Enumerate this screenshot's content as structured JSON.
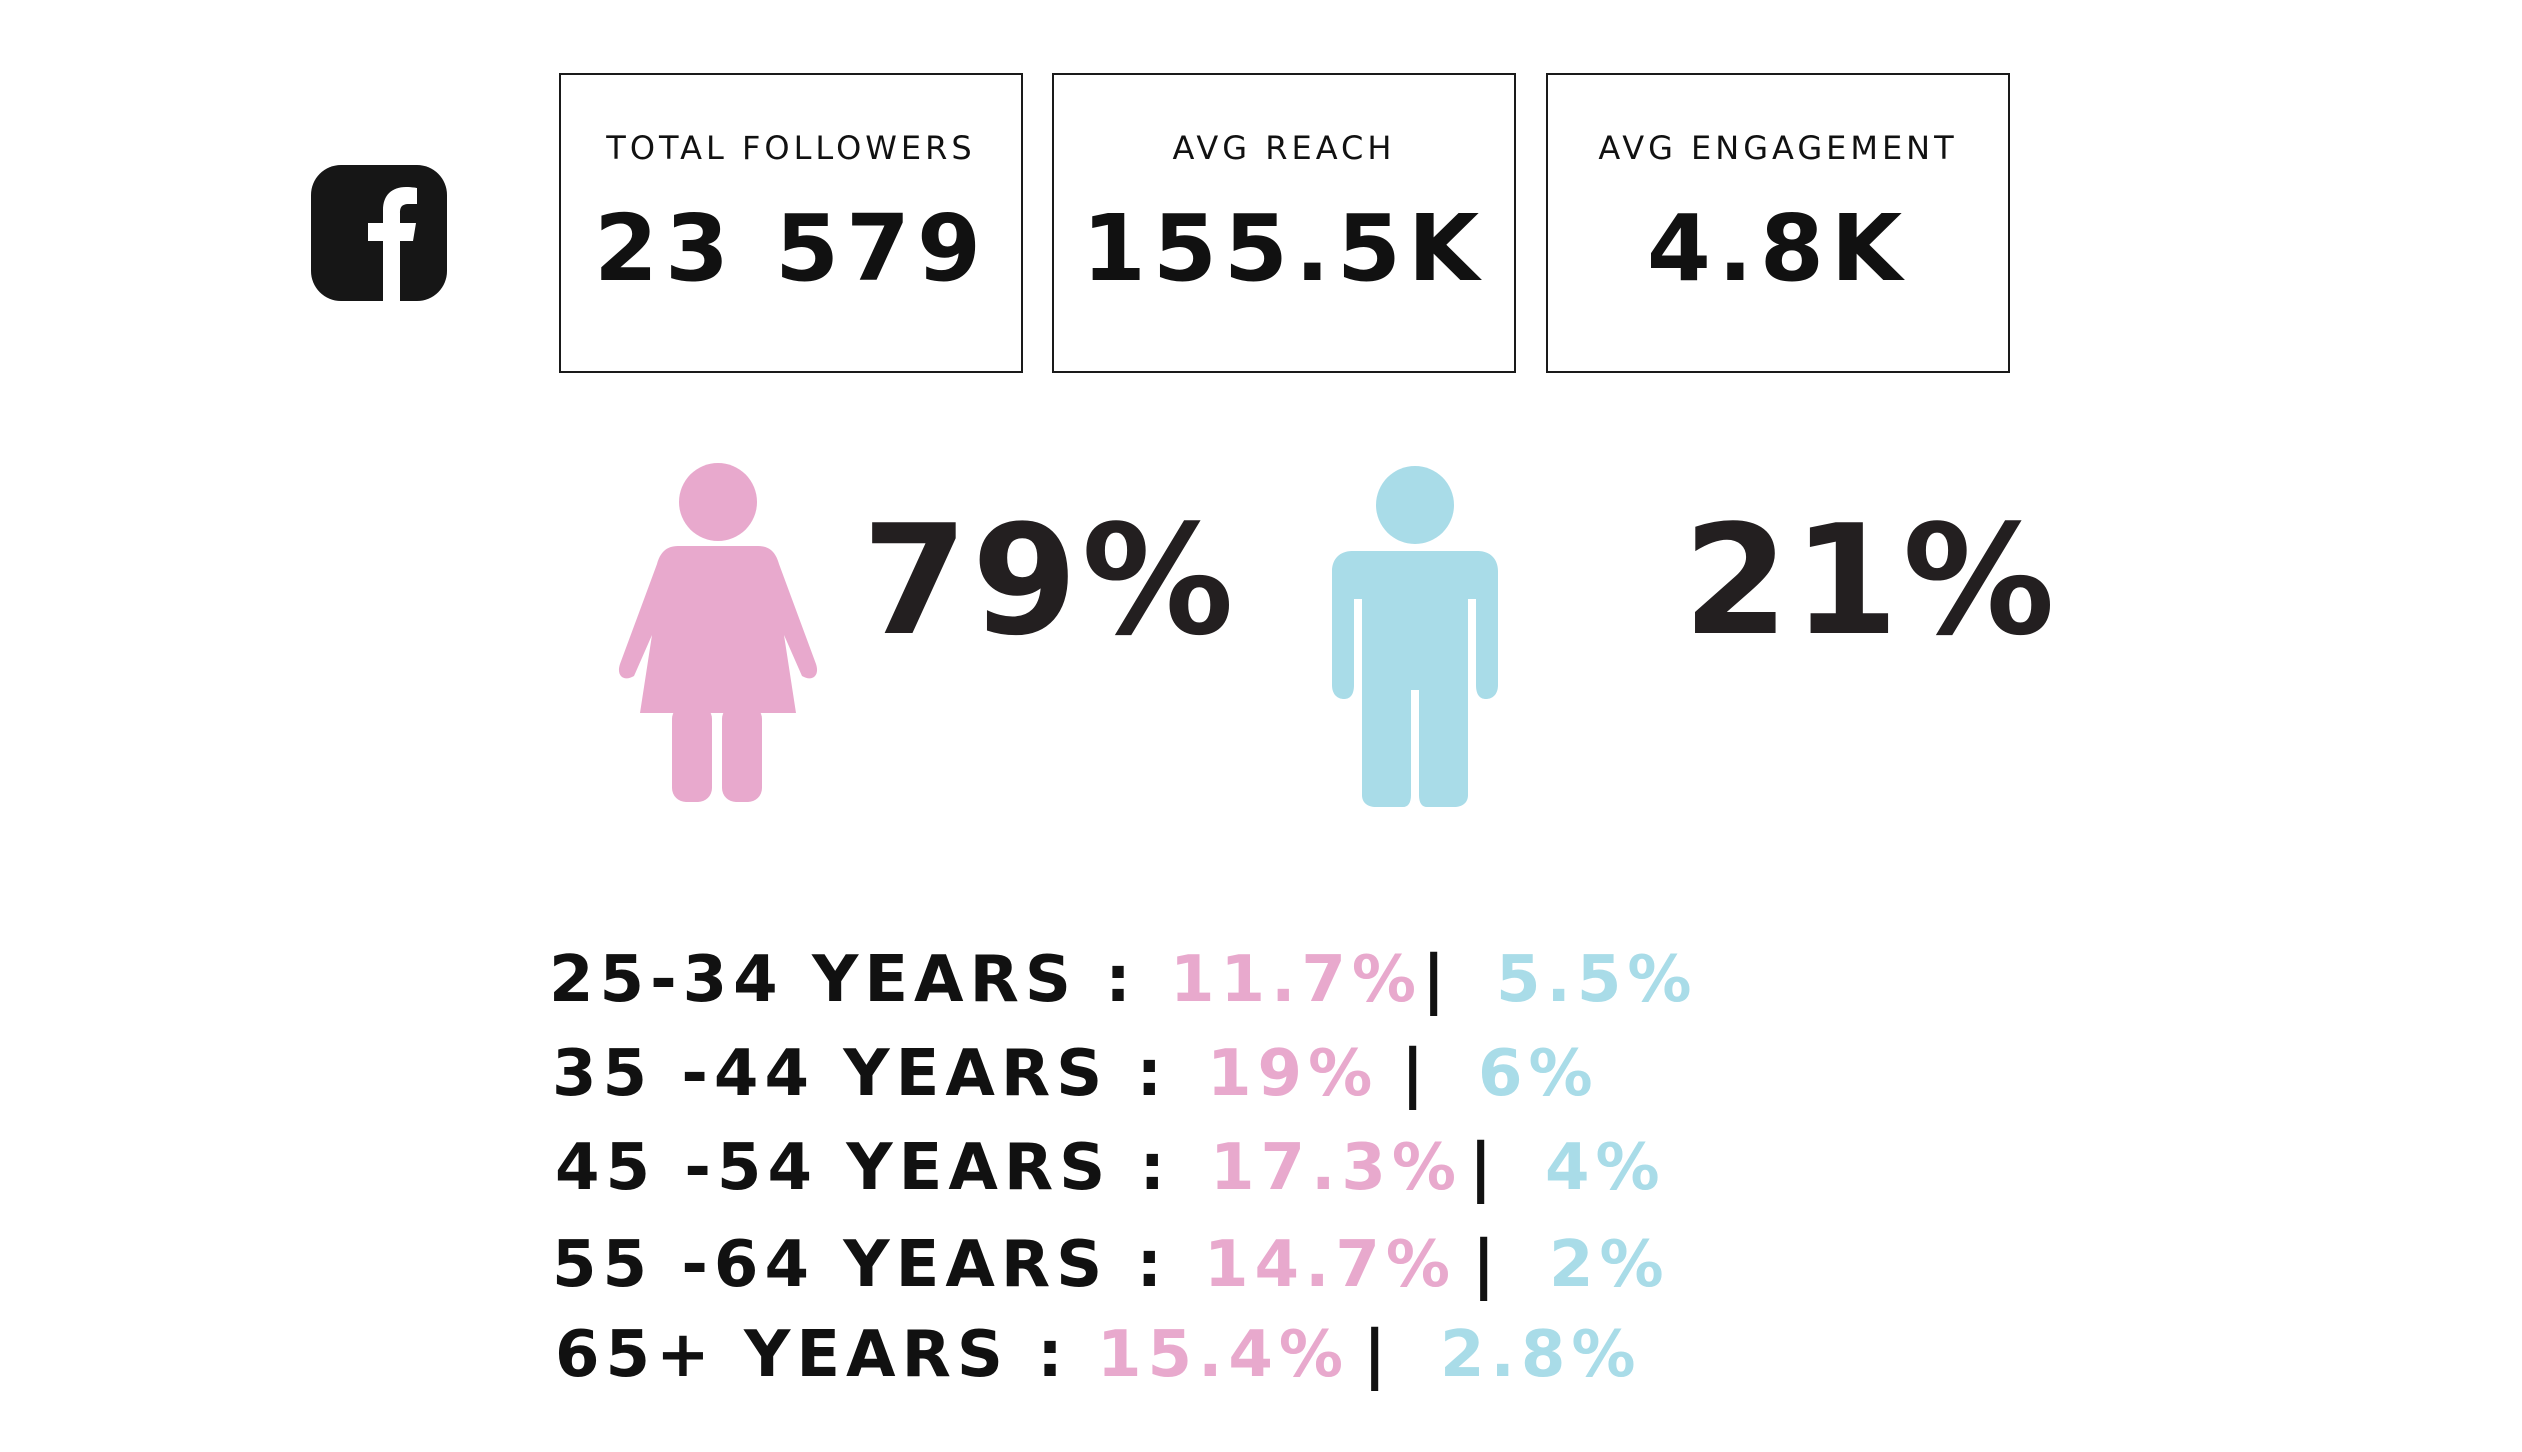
{
  "platform": {
    "icon": "facebook-icon"
  },
  "stats": [
    {
      "label": "TOTAL FOLLOWERS",
      "value": "23 579"
    },
    {
      "label": "AVG REACH",
      "value": "155.5K"
    },
    {
      "label": "AVG ENGAGEMENT",
      "value": "4.8K"
    }
  ],
  "gender": {
    "female": {
      "icon": "female-figure-icon",
      "percent": "79%",
      "color": "#e8a9cd"
    },
    "male": {
      "icon": "male-figure-icon",
      "percent": "21%",
      "color": "#a9dce8"
    }
  },
  "age_groups": [
    {
      "label": "25-34 YEARS :",
      "female": "11.7%",
      "separator": "|",
      "male": "5.5%"
    },
    {
      "label": "35 -44 YEARS :",
      "female": "19%",
      "separator": "|",
      "male": "6%"
    },
    {
      "label": "45 -54 YEARS :",
      "female": "17.3%",
      "separator": "|",
      "male": "4%"
    },
    {
      "label": "55 -64 YEARS :",
      "female": "14.7%",
      "separator": "|",
      "male": "2%"
    },
    {
      "label": "65+ YEARS :",
      "female": "15.4%",
      "separator": "|",
      "male": "2.8%"
    }
  ]
}
